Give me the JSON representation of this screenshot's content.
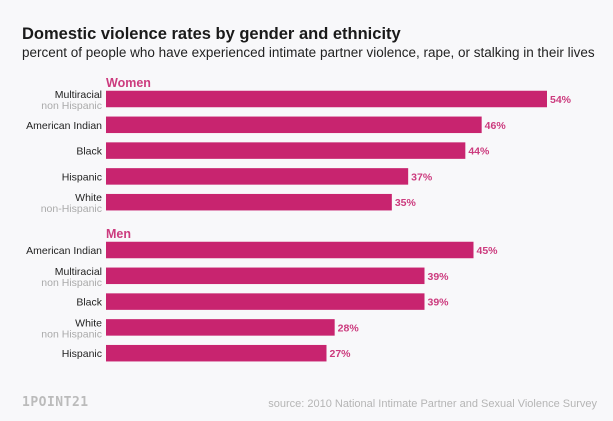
{
  "chart_data": {
    "type": "bar",
    "orientation": "horizontal",
    "title": "Domestic violence rates by gender and ethnicity",
    "subtitle": "percent of people who have experienced intimate partner violence, rape, or stalking in their lives",
    "xlim": [
      0,
      54
    ],
    "grid": false,
    "bar_color": "#c8246f",
    "label_color": "#cc3b7e",
    "groups": [
      {
        "name": "Women",
        "categories": [
          {
            "label": "Multiracial",
            "sublabel": "non Hispanic",
            "value": 54,
            "display": "54%"
          },
          {
            "label": "American Indian",
            "sublabel": "",
            "value": 46,
            "display": "46%"
          },
          {
            "label": "Black",
            "sublabel": "",
            "value": 44,
            "display": "44%"
          },
          {
            "label": "Hispanic",
            "sublabel": "",
            "value": 37,
            "display": "37%"
          },
          {
            "label": "White",
            "sublabel": "non-Hispanic",
            "value": 35,
            "display": "35%"
          }
        ]
      },
      {
        "name": "Men",
        "categories": [
          {
            "label": "American Indian",
            "sublabel": "",
            "value": 45,
            "display": "45%"
          },
          {
            "label": "Multiracial",
            "sublabel": "non Hispanic",
            "value": 39,
            "display": "39%"
          },
          {
            "label": "Black",
            "sublabel": "",
            "value": 39,
            "display": "39%"
          },
          {
            "label": "White",
            "sublabel": "non Hispanic",
            "value": 28,
            "display": "28%"
          },
          {
            "label": "Hispanic",
            "sublabel": "",
            "value": 27,
            "display": "27%"
          }
        ]
      }
    ]
  },
  "footer": {
    "logo": "1POINT21",
    "source": "source: 2010 National Intimate Partner and Sexual Violence Survey"
  }
}
